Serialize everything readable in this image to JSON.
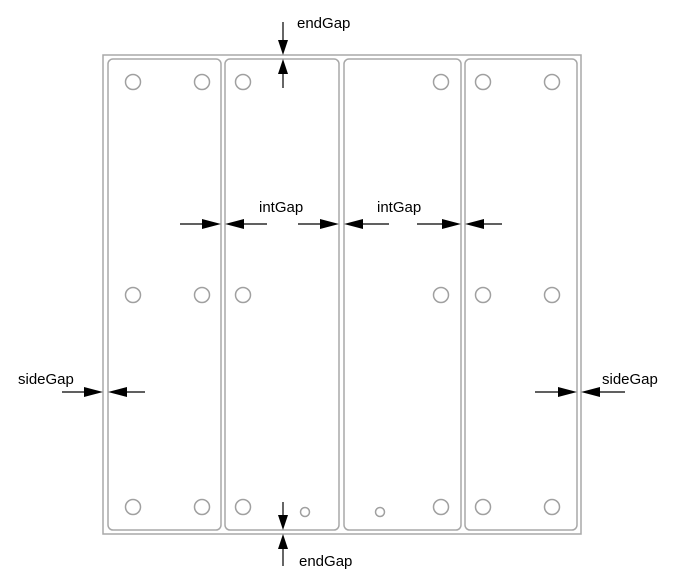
{
  "labels": {
    "end_gap_top": "endGap",
    "end_gap_bottom": "endGap",
    "int_gap_left": "intGap",
    "int_gap_right": "intGap",
    "side_gap_left": "sideGap",
    "side_gap_right": "sideGap"
  },
  "colors": {
    "outline": "#a8a8a8",
    "hole": "#a0a0a0",
    "dimension": "#000000"
  }
}
